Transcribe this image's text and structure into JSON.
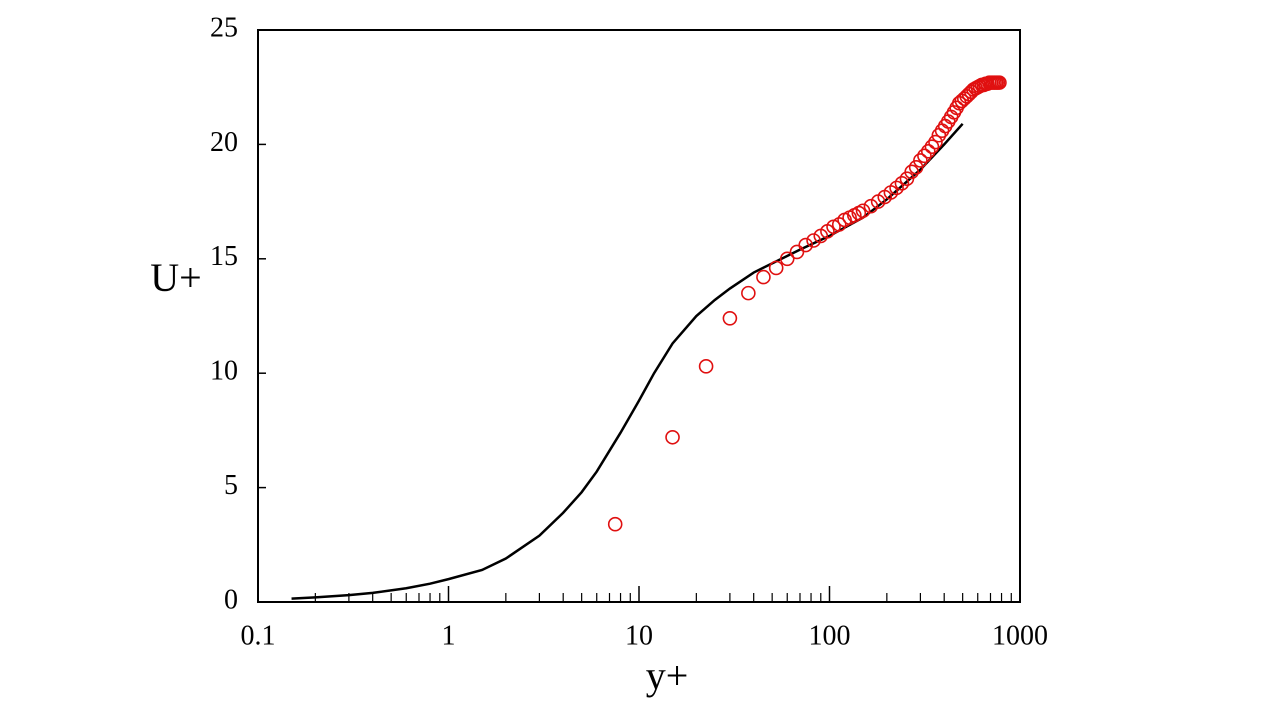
{
  "chart_data": {
    "type": "line",
    "xlabel": "y+",
    "ylabel": "U+",
    "xscale": "log",
    "xlim": [
      0.1,
      1000
    ],
    "xticks": [
      0.1,
      1,
      10,
      100,
      1000
    ],
    "xminorticks": [
      0.2,
      0.3,
      0.4,
      0.5,
      0.6,
      0.7,
      0.8,
      0.9,
      2,
      3,
      4,
      5,
      6,
      7,
      8,
      9,
      20,
      30,
      40,
      50,
      60,
      70,
      80,
      90,
      200,
      300,
      400,
      500,
      600,
      700,
      800,
      900
    ],
    "ylim": [
      0,
      25
    ],
    "yticks": [
      0,
      5,
      10,
      15,
      20,
      25
    ],
    "series": [
      {
        "type": "line",
        "color": "#000000",
        "x": [
          0.15,
          0.2,
          0.3,
          0.4,
          0.6,
          0.8,
          1,
          1.5,
          2,
          3,
          4,
          5,
          6,
          8,
          10,
          12,
          15,
          20,
          25,
          30,
          40,
          50,
          70,
          100,
          150,
          200,
          300,
          400,
          500
        ],
        "values": [
          0.15,
          0.2,
          0.3,
          0.4,
          0.6,
          0.8,
          1.0,
          1.4,
          1.9,
          2.9,
          3.9,
          4.8,
          5.7,
          7.4,
          8.8,
          10.0,
          11.3,
          12.5,
          13.2,
          13.7,
          14.4,
          14.8,
          15.4,
          16.0,
          16.8,
          17.6,
          18.9,
          20.0,
          20.9
        ]
      },
      {
        "type": "scatter",
        "color": "#e01010",
        "x": [
          7.5,
          15,
          22.5,
          30,
          37.5,
          45,
          52.5,
          60,
          67.5,
          75,
          82.5,
          90,
          97.5,
          105,
          112.5,
          120,
          127.5,
          135,
          142.5,
          150,
          165,
          180,
          195,
          210,
          225,
          240,
          255,
          270,
          285,
          300,
          315,
          330,
          345,
          360,
          375,
          390,
          405,
          420,
          435,
          450,
          465,
          480,
          495,
          510,
          525,
          540,
          555,
          570,
          585,
          600,
          615,
          630,
          645,
          660,
          675,
          690,
          705,
          720,
          735,
          750,
          765,
          780
        ],
        "values": [
          3.4,
          7.2,
          10.3,
          12.4,
          13.5,
          14.2,
          14.6,
          15.0,
          15.3,
          15.6,
          15.8,
          16.0,
          16.2,
          16.4,
          16.5,
          16.7,
          16.8,
          16.9,
          17.0,
          17.1,
          17.3,
          17.5,
          17.7,
          17.9,
          18.1,
          18.3,
          18.5,
          18.8,
          19.0,
          19.3,
          19.5,
          19.7,
          19.9,
          20.1,
          20.4,
          20.6,
          20.8,
          21.0,
          21.2,
          21.4,
          21.6,
          21.8,
          21.9,
          22.0,
          22.1,
          22.2,
          22.3,
          22.4,
          22.45,
          22.5,
          22.55,
          22.6,
          22.6,
          22.65,
          22.65,
          22.7,
          22.7,
          22.7,
          22.7,
          22.7,
          22.7,
          22.7
        ]
      }
    ]
  }
}
